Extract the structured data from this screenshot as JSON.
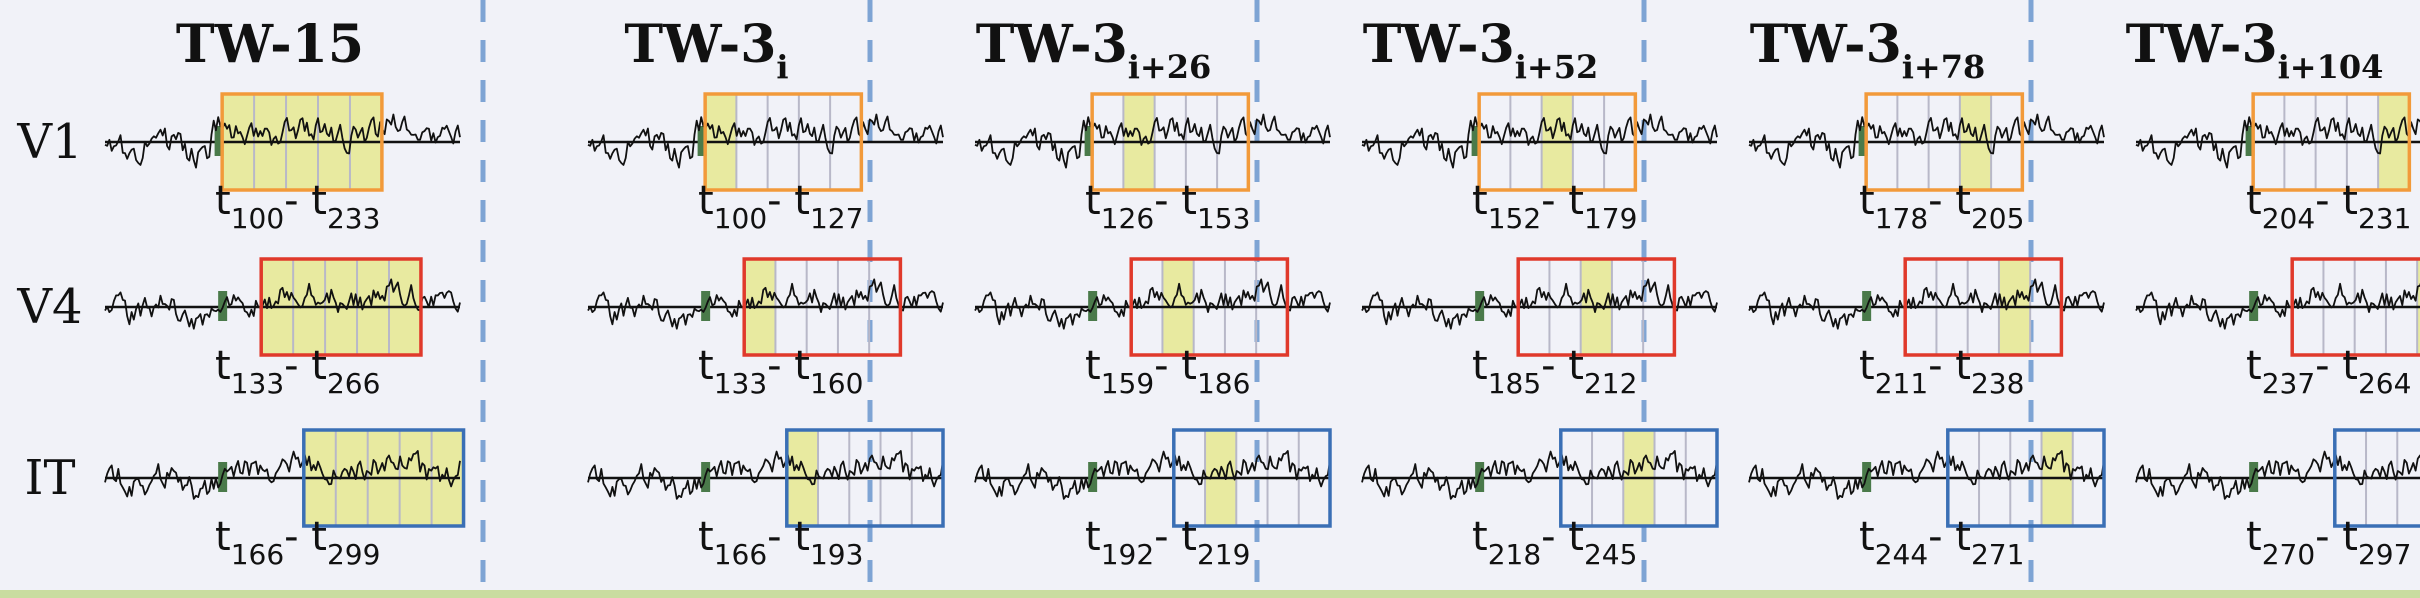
{
  "columns": [
    {
      "base": "TW-15",
      "sub": ""
    },
    {
      "base": "TW-3",
      "sub": "i"
    },
    {
      "base": "TW-3",
      "sub": "i+26"
    },
    {
      "base": "TW-3",
      "sub": "i+52"
    },
    {
      "base": "TW-3",
      "sub": "i+78"
    },
    {
      "base": "TW-3",
      "sub": "i+104"
    }
  ],
  "rows": [
    {
      "label": "V1",
      "color": "#f29a3a",
      "ranges": [
        [
          "100",
          "233"
        ],
        [
          "100",
          "127"
        ],
        [
          "126",
          "153"
        ],
        [
          "152",
          "179"
        ],
        [
          "178",
          "205"
        ],
        [
          "204",
          "231"
        ]
      ]
    },
    {
      "label": "V4",
      "color": "#e0392b",
      "ranges": [
        [
          "133",
          "266"
        ],
        [
          "133",
          "160"
        ],
        [
          "159",
          "186"
        ],
        [
          "185",
          "212"
        ],
        [
          "211",
          "238"
        ],
        [
          "237",
          "264"
        ]
      ]
    },
    {
      "label": "IT",
      "color": "#3a6fb5",
      "ranges": [
        [
          "166",
          "299"
        ],
        [
          "166",
          "193"
        ],
        [
          "192",
          "219"
        ],
        [
          "218",
          "245"
        ],
        [
          "244",
          "271"
        ],
        [
          "270",
          "297"
        ]
      ]
    }
  ],
  "range_prefix": "t",
  "range_separator": "- ",
  "colors": {
    "highlight": "#e8eaa0",
    "onset_marker": "#4a7a4a",
    "divider": "#7ea4d4",
    "signal": "#111111"
  }
}
